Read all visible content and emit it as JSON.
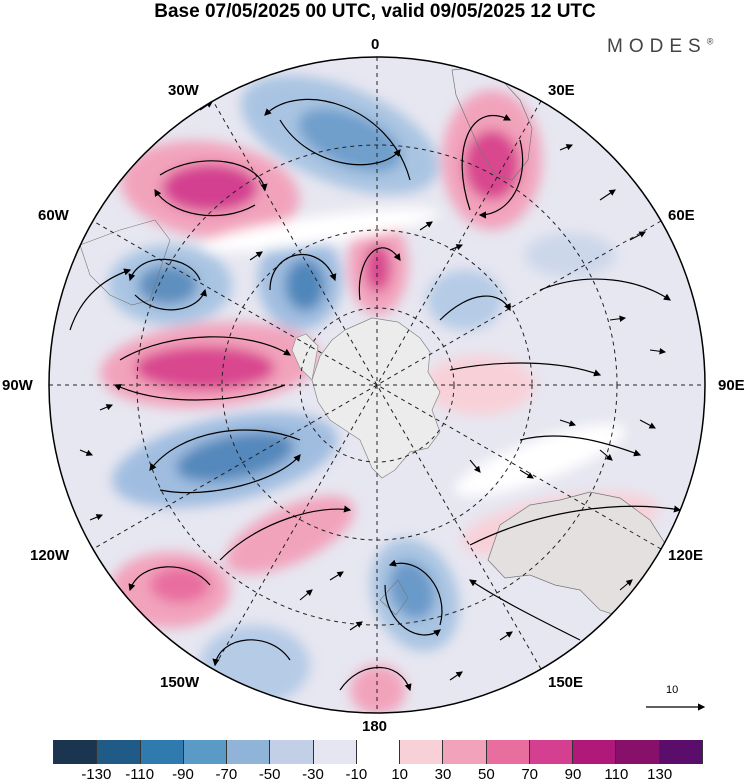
{
  "title": "Base 07/05/2025 00 UTC, valid 09/05/2025 12 UTC",
  "brand": {
    "name": "MODES",
    "mark": "®"
  },
  "longitude_labels": [
    "0",
    "30E",
    "60E",
    "90E",
    "120E",
    "150E",
    "180",
    "150W",
    "120W",
    "90W",
    "60W",
    "30W"
  ],
  "reference_vector": {
    "value": "10"
  },
  "colorbar": {
    "colors": [
      "#1b3550",
      "#1f5b86",
      "#2f7bb0",
      "#5a9ac7",
      "#8fb4d8",
      "#c3cfe6",
      "#e6e6f2",
      "#ffffff",
      "#f8d0d8",
      "#f2a3bc",
      "#e86ea0",
      "#d43f90",
      "#b0197a",
      "#86106a",
      "#5a0d6a"
    ],
    "tick_labels": [
      "-130",
      "-110",
      "-90",
      "-70",
      "-50",
      "-30",
      "-10",
      "10",
      "30",
      "50",
      "70",
      "90",
      "110",
      "130"
    ]
  },
  "map_data": {
    "projection": "south-polar-stereographic",
    "anomaly_centers": [
      {
        "lon_label": "30W",
        "sign": "negative"
      },
      {
        "lon_label": "30E",
        "sign": "positive"
      },
      {
        "lon_label": "60W",
        "sign": "positive"
      },
      {
        "lon_label": "90W",
        "sign": "positive"
      },
      {
        "lon_label": "120W",
        "sign": "positive"
      },
      {
        "lon_label": "150E",
        "sign": "negative"
      },
      {
        "lon_label": "180",
        "sign": "positive"
      }
    ]
  }
}
